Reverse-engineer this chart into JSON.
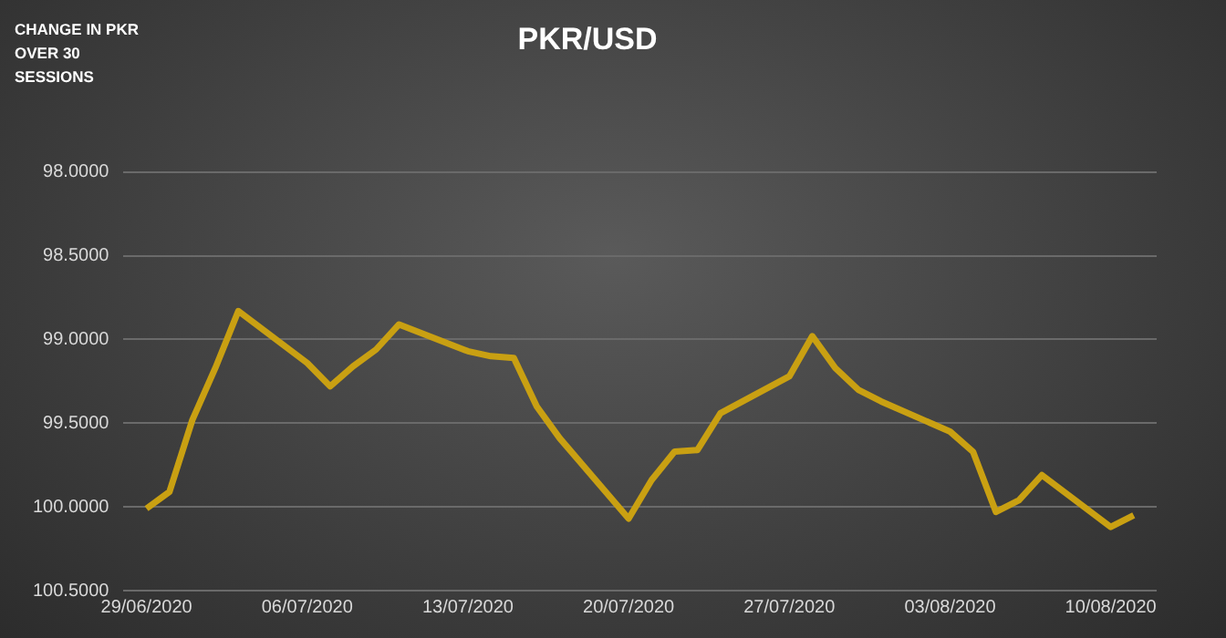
{
  "chart_data": {
    "type": "line",
    "title": "PKR/USD",
    "annotations": [
      "CHANGE IN PKR OVER 30 SESSIONS"
    ],
    "x": [
      "2020-06-29",
      "2020-06-30",
      "2020-07-01",
      "2020-07-02",
      "2020-07-03",
      "2020-07-06",
      "2020-07-07",
      "2020-07-08",
      "2020-07-09",
      "2020-07-10",
      "2020-07-13",
      "2020-07-14",
      "2020-07-15",
      "2020-07-16",
      "2020-07-17",
      "2020-07-20",
      "2020-07-21",
      "2020-07-22",
      "2020-07-23",
      "2020-07-24",
      "2020-07-27",
      "2020-07-28",
      "2020-07-29",
      "2020-07-30",
      "2020-07-31",
      "2020-08-03",
      "2020-08-04",
      "2020-08-05",
      "2020-08-06",
      "2020-08-07",
      "2020-08-10",
      "2020-08-11"
    ],
    "series": [
      {
        "color": "#c9a012",
        "values": [
          100.01,
          99.91,
          99.48,
          99.17,
          98.83,
          99.14,
          99.28,
          99.16,
          99.06,
          98.91,
          99.07,
          99.1,
          99.11,
          99.4,
          99.59,
          100.07,
          99.84,
          99.67,
          99.66,
          99.44,
          99.22,
          98.98,
          99.17,
          99.3,
          99.37,
          99.55,
          99.67,
          100.03,
          99.96,
          99.81,
          100.12,
          100.05
        ]
      }
    ],
    "xlim": [
      "2020-06-28",
      "2020-08-12"
    ],
    "xticks": [
      {
        "value": "2020-06-29",
        "label": "29/06/2020"
      },
      {
        "value": "2020-07-06",
        "label": "06/07/2020"
      },
      {
        "value": "2020-07-13",
        "label": "13/07/2020"
      },
      {
        "value": "2020-07-20",
        "label": "20/07/2020"
      },
      {
        "value": "2020-07-27",
        "label": "27/07/2020"
      },
      {
        "value": "2020-08-03",
        "label": "03/08/2020"
      },
      {
        "value": "2020-08-10",
        "label": "10/08/2020"
      }
    ],
    "ylim": [
      100.5,
      98
    ],
    "yticks": [
      {
        "value": 98,
        "label": "98.0000"
      },
      {
        "value": 98.5,
        "label": "98.5000"
      },
      {
        "value": 99,
        "label": "99.0000"
      },
      {
        "value": 99.5,
        "label": "99.5000"
      },
      {
        "value": 100,
        "label": "100.0000"
      },
      {
        "value": 100.5,
        "label": "100.5000"
      }
    ],
    "grid": "y",
    "legend": false,
    "marker": "none",
    "line_style": "solid"
  }
}
